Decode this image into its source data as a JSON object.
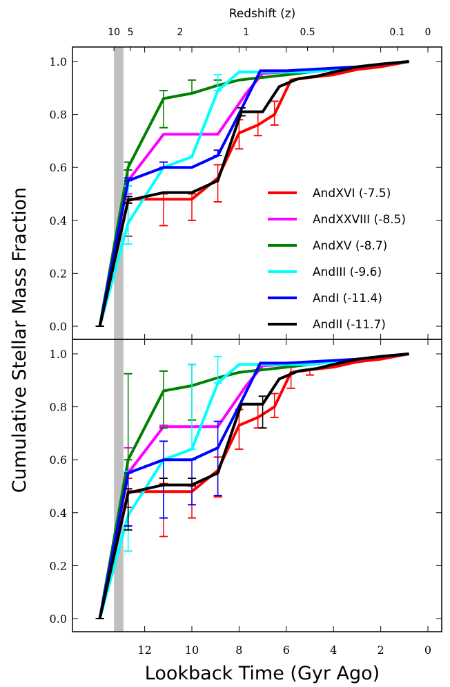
{
  "chart_data": {
    "type": "line",
    "top_xlabel": "Redshift (z)",
    "xlabel": "Lookback Time (Gyr Ago)",
    "ylabel": "Cumulative Stellar Mass Fraction",
    "xlim": [
      14.2,
      -0.6
    ],
    "ylim": [
      -0.05,
      1.05
    ],
    "x_ticks": [
      "12",
      "10",
      "8",
      "6",
      "4",
      "2",
      "0"
    ],
    "y_ticks": [
      "0.0",
      "0.2",
      "0.4",
      "0.6",
      "0.8",
      "1.0"
    ],
    "redshift_ticks": [
      {
        "label": "10",
        "t": 13.3
      },
      {
        "label": "5",
        "t": 12.6
      },
      {
        "label": "2",
        "t": 10.5
      },
      {
        "label": "1",
        "t": 7.7
      },
      {
        "label": "0.5",
        "t": 5.1
      },
      {
        "label": "0.1",
        "t": 1.3
      },
      {
        "label": "0",
        "t": 0
      }
    ],
    "reionization_band": [
      13.3,
      12.9
    ],
    "legend_position": "center-right of top panel",
    "series": [
      {
        "name": "AndXVI (-7.5)",
        "color": "#ff0000",
        "x": [
          13.9,
          12.7,
          11.2,
          10.0,
          8.9,
          8.0,
          7.2,
          6.5,
          5.8,
          5.0,
          4.0,
          3.0,
          2.0,
          0.8
        ],
        "y": [
          0.0,
          0.48,
          0.48,
          0.48,
          0.56,
          0.73,
          0.76,
          0.8,
          0.93,
          0.94,
          0.95,
          0.97,
          0.98,
          1.0
        ],
        "panels": [
          {
            "err": [
              [
                0.0,
                0.0
              ],
              [
                0.14,
                0.0
              ],
              [
                0.1,
                0.02
              ],
              [
                0.08,
                0.02
              ],
              [
                0.09,
                0.05
              ],
              [
                0.06,
                0.05
              ],
              [
                0.04,
                0.05
              ],
              [
                0.04,
                0.05
              ],
              [
                0.0,
                0.0
              ],
              [
                0.0,
                0.0
              ],
              [
                0.0,
                0.0
              ],
              [
                0.0,
                0.0
              ],
              [
                0.0,
                0.0
              ],
              [
                0.0,
                0.0
              ]
            ]
          },
          {
            "err": [
              [
                0.0,
                0.0
              ],
              [
                0.06,
                0.05
              ],
              [
                0.17,
                0.03
              ],
              [
                0.1,
                0.02
              ],
              [
                0.1,
                0.05
              ],
              [
                0.09,
                0.06
              ],
              [
                0.04,
                0.05
              ],
              [
                0.04,
                0.05
              ],
              [
                0.06,
                0.02
              ],
              [
                0.02,
                0.0
              ],
              [
                0.0,
                0.0
              ],
              [
                0.0,
                0.0
              ],
              [
                0.0,
                0.0
              ],
              [
                0.0,
                0.0
              ]
            ]
          }
        ]
      },
      {
        "name": "AndXXVIII (-8.5)",
        "color": "#ff00ff",
        "x": [
          13.9,
          12.7,
          11.2,
          10.0,
          8.9,
          7.7,
          7.0,
          6.0,
          5.0,
          4.0,
          3.0,
          2.0,
          0.8
        ],
        "y": [
          0.0,
          0.55,
          0.725,
          0.725,
          0.725,
          0.88,
          0.955,
          0.96,
          0.96,
          0.97,
          0.98,
          0.99,
          1.0
        ],
        "panels": [
          {
            "err": [
              [
                0.0,
                0.0
              ],
              [
                0.05,
                0.04
              ],
              [
                0.0,
                0.0
              ],
              [
                0.0,
                0.0
              ],
              [
                0.0,
                0.0
              ],
              [
                0.0,
                0.0
              ],
              [
                0.0,
                0.0
              ],
              [
                0.0,
                0.0
              ],
              [
                0.0,
                0.0
              ],
              [
                0.0,
                0.0
              ],
              [
                0.0,
                0.0
              ],
              [
                0.0,
                0.0
              ],
              [
                0.0,
                0.0
              ]
            ]
          },
          {
            "err": [
              [
                0.0,
                0.0
              ],
              [
                0.0,
                0.095
              ],
              [
                0.0,
                0.005
              ],
              [
                0.0,
                0.0
              ],
              [
                0.0,
                0.0
              ],
              [
                0.0,
                0.0
              ],
              [
                0.0,
                0.0
              ],
              [
                0.0,
                0.0
              ],
              [
                0.0,
                0.0
              ],
              [
                0.0,
                0.0
              ],
              [
                0.0,
                0.0
              ],
              [
                0.0,
                0.0
              ],
              [
                0.0,
                0.0
              ]
            ]
          }
        ]
      },
      {
        "name": "AndXV (-8.7)",
        "color": "#008000",
        "x": [
          13.9,
          12.7,
          11.2,
          10.0,
          8.9,
          8.0,
          7.0,
          6.0,
          5.0,
          4.0,
          3.0,
          2.0,
          0.8
        ],
        "y": [
          0.0,
          0.6,
          0.86,
          0.88,
          0.91,
          0.93,
          0.94,
          0.95,
          0.96,
          0.97,
          0.98,
          0.99,
          1.0
        ],
        "panels": [
          {
            "err": [
              [
                0.0,
                0.0
              ],
              [
                0.01,
                0.02
              ],
              [
                0.11,
                0.03
              ],
              [
                0.0,
                0.05
              ],
              [
                0.0,
                0.02
              ],
              [
                0.0,
                0.0
              ],
              [
                0.0,
                0.0
              ],
              [
                0.0,
                0.0
              ],
              [
                0.0,
                0.0
              ],
              [
                0.0,
                0.0
              ],
              [
                0.0,
                0.0
              ],
              [
                0.0,
                0.0
              ],
              [
                0.0,
                0.0
              ]
            ]
          },
          {
            "err": [
              [
                0.0,
                0.0
              ],
              [
                0.0,
                0.325
              ],
              [
                0.14,
                0.075
              ],
              [
                0.13,
                0.08
              ],
              [
                0.0,
                0.0
              ],
              [
                0.0,
                0.0
              ],
              [
                0.0,
                0.0
              ],
              [
                0.0,
                0.0
              ],
              [
                0.0,
                0.0
              ],
              [
                0.0,
                0.0
              ],
              [
                0.0,
                0.0
              ],
              [
                0.0,
                0.0
              ],
              [
                0.0,
                0.0
              ]
            ]
          }
        ]
      },
      {
        "name": "AndIII (-9.6)",
        "color": "#00ffff",
        "x": [
          13.9,
          12.7,
          11.2,
          10.0,
          8.9,
          8.0,
          7.0,
          6.0,
          5.0,
          4.0,
          3.0,
          2.0,
          0.8
        ],
        "y": [
          0.0,
          0.39,
          0.6,
          0.64,
          0.89,
          0.96,
          0.96,
          0.96,
          0.96,
          0.97,
          0.98,
          0.99,
          1.0
        ],
        "panels": [
          {
            "err": [
              [
                0.0,
                0.0
              ],
              [
                0.08,
                0.14
              ],
              [
                0.0,
                0.0
              ],
              [
                0.0,
                0.0
              ],
              [
                0.0,
                0.06
              ],
              [
                0.0,
                0.0
              ],
              [
                0.0,
                0.0
              ],
              [
                0.0,
                0.0
              ],
              [
                0.0,
                0.0
              ],
              [
                0.0,
                0.0
              ],
              [
                0.0,
                0.0
              ],
              [
                0.0,
                0.0
              ],
              [
                0.0,
                0.0
              ]
            ]
          },
          {
            "err": [
              [
                0.0,
                0.0
              ],
              [
                0.135,
                0.165
              ],
              [
                0.22,
                0.0
              ],
              [
                0.0,
                0.32
              ],
              [
                0.0,
                0.1
              ],
              [
                0.0,
                0.0
              ],
              [
                0.0,
                0.0
              ],
              [
                0.0,
                0.0
              ],
              [
                0.0,
                0.0
              ],
              [
                0.0,
                0.0
              ],
              [
                0.0,
                0.0
              ],
              [
                0.0,
                0.0
              ],
              [
                0.0,
                0.0
              ]
            ]
          }
        ]
      },
      {
        "name": "AndI (-11.4)",
        "color": "#0000ff",
        "x": [
          13.9,
          12.7,
          11.2,
          10.0,
          8.9,
          7.9,
          7.1,
          6.0,
          5.0,
          4.0,
          3.0,
          2.0,
          0.8
        ],
        "y": [
          0.0,
          0.55,
          0.6,
          0.6,
          0.645,
          0.82,
          0.965,
          0.965,
          0.97,
          0.975,
          0.98,
          0.99,
          1.0
        ],
        "panels": [
          {
            "err": [
              [
                0.0,
                0.0
              ],
              [
                0.0,
                0.01
              ],
              [
                0.0,
                0.02
              ],
              [
                0.0,
                0.0
              ],
              [
                0.0,
                0.02
              ],
              [
                0.0,
                0.0
              ],
              [
                0.0,
                0.0
              ],
              [
                0.0,
                0.0
              ],
              [
                0.0,
                0.0
              ],
              [
                0.0,
                0.0
              ],
              [
                0.0,
                0.0
              ],
              [
                0.0,
                0.0
              ],
              [
                0.0,
                0.0
              ]
            ]
          },
          {
            "err": [
              [
                0.0,
                0.0
              ],
              [
                0.2,
                0.0
              ],
              [
                0.22,
                0.07
              ],
              [
                0.17,
                0.0
              ],
              [
                0.18,
                0.1
              ],
              [
                0.0,
                0.0
              ],
              [
                0.0,
                0.0
              ],
              [
                0.0,
                0.0
              ],
              [
                0.0,
                0.0
              ],
              [
                0.0,
                0.0
              ],
              [
                0.0,
                0.0
              ],
              [
                0.0,
                0.0
              ],
              [
                0.0,
                0.0
              ]
            ]
          }
        ]
      },
      {
        "name": "AndII (-11.7)",
        "color": "#000000",
        "x": [
          13.9,
          12.7,
          11.2,
          10.0,
          8.9,
          7.9,
          7.0,
          6.3,
          5.5,
          4.7,
          4.0,
          3.0,
          2.0,
          0.8
        ],
        "y": [
          0.0,
          0.475,
          0.505,
          0.505,
          0.55,
          0.81,
          0.81,
          0.905,
          0.935,
          0.945,
          0.96,
          0.98,
          0.99,
          1.0
        ],
        "panels": [
          {
            "err": [
              [
                0.0,
                0.0
              ],
              [
                0.01,
                0.015
              ],
              [
                0.0,
                0.0
              ],
              [
                0.0,
                0.0
              ],
              [
                0.0,
                0.0
              ],
              [
                0.015,
                0.015
              ],
              [
                0.0,
                0.0
              ],
              [
                0.0,
                0.0
              ],
              [
                0.0,
                0.0
              ],
              [
                0.0,
                0.0
              ],
              [
                0.0,
                0.0
              ],
              [
                0.0,
                0.0
              ],
              [
                0.0,
                0.0
              ],
              [
                0.0,
                0.0
              ]
            ]
          },
          {
            "err": [
              [
                0.0,
                0.0
              ],
              [
                0.14,
                0.015
              ],
              [
                0.0,
                0.025
              ],
              [
                0.0,
                0.025
              ],
              [
                0.0,
                0.0
              ],
              [
                0.0,
                0.0
              ],
              [
                0.09,
                0.03
              ],
              [
                0.0,
                0.0
              ],
              [
                0.0,
                0.0
              ],
              [
                0.0,
                0.0
              ],
              [
                0.0,
                0.0
              ],
              [
                0.0,
                0.0
              ],
              [
                0.0,
                0.0
              ],
              [
                0.0,
                0.0
              ]
            ]
          }
        ]
      }
    ]
  }
}
